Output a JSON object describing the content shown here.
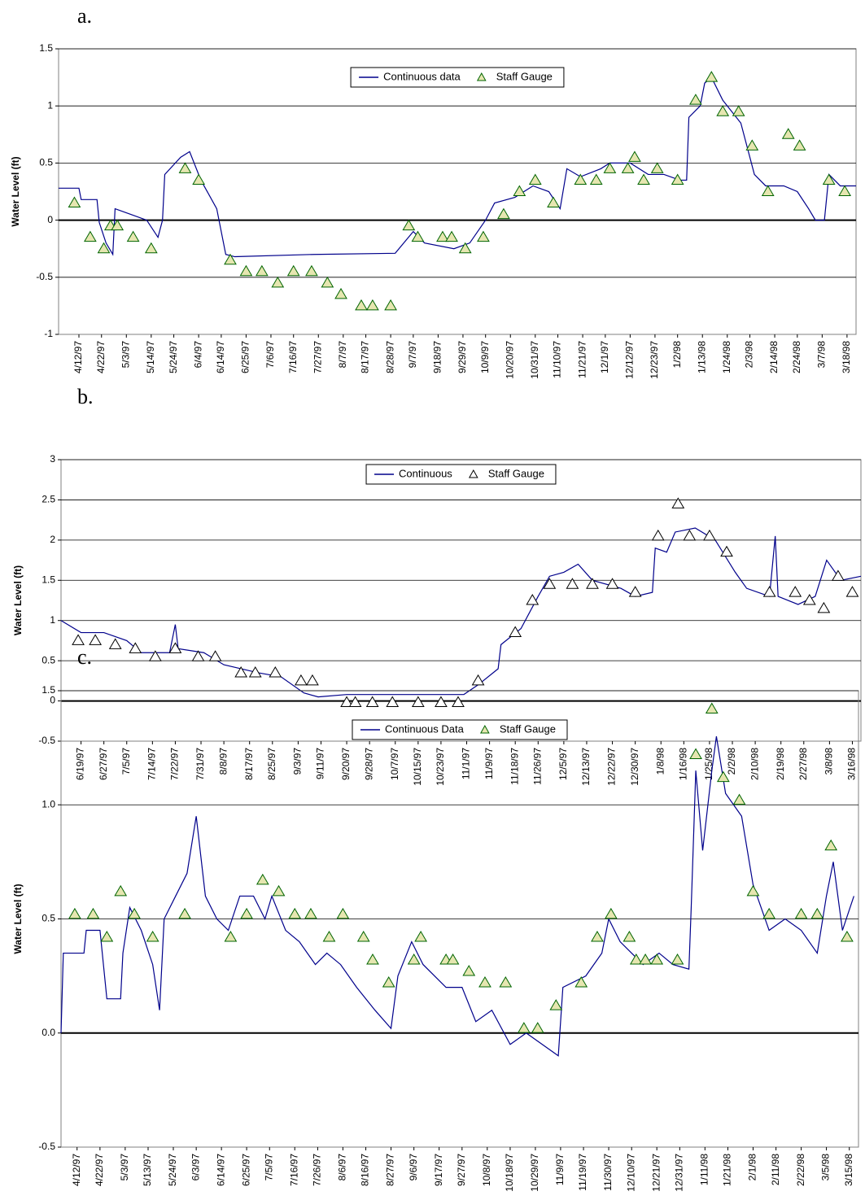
{
  "chart_data": [
    {
      "type": "line",
      "label": "a.",
      "ylabel": "Water Level (ft)",
      "grid": true,
      "legend": "top",
      "xlim": [
        "4/3/97",
        "3/22/98"
      ],
      "ylim": [
        -1,
        1.5
      ],
      "yticks": [
        -1,
        -0.5,
        0,
        0.5,
        1,
        1.5
      ],
      "xticks": [
        "4/12/97",
        "4/22/97",
        "5/3/97",
        "5/14/97",
        "5/24/97",
        "6/4/97",
        "6/14/97",
        "6/25/97",
        "7/6/97",
        "7/16/97",
        "7/27/97",
        "8/7/97",
        "8/17/97",
        "8/28/97",
        "9/7/97",
        "9/18/97",
        "9/29/97",
        "10/9/97",
        "10/20/97",
        "10/31/97",
        "11/10/97",
        "11/21/97",
        "12/1/97",
        "12/12/97",
        "12/23/97",
        "1/2/98",
        "1/13/98",
        "1/24/98",
        "2/3/98",
        "2/14/98",
        "2/24/98",
        "3/7/98",
        "3/18/98"
      ],
      "series": [
        {
          "name": "Continuous data",
          "type": "line",
          "color": "#00008b",
          "x": [
            "4/3/97",
            "4/12/97",
            "4/13/97",
            "4/20/97",
            "4/21/97",
            "4/24/97",
            "4/27/97",
            "4/28/97",
            "5/5/97",
            "5/12/97",
            "5/17/97",
            "5/19/97",
            "5/20/97",
            "5/27/97",
            "5/31/97",
            "6/5/97",
            "6/12/97",
            "6/16/97",
            "6/20/97",
            "7/25/97",
            "8/30/97",
            "9/7/97",
            "9/12/97",
            "9/25/97",
            "10/2/97",
            "10/9/97",
            "10/13/97",
            "10/22/97",
            "10/30/97",
            "11/6/97",
            "11/11/97",
            "11/14/97",
            "11/20/97",
            "11/29/97",
            "12/3/97",
            "12/12/97",
            "12/20/97",
            "12/27/97",
            "1/3/98",
            "1/6/98",
            "1/7/98",
            "1/12/98",
            "1/14/98",
            "1/17/98",
            "1/22/98",
            "1/30/98",
            "2/5/98",
            "2/10/98",
            "2/18/98",
            "2/24/98",
            "3/1/98",
            "3/4/98",
            "3/8/98",
            "3/10/98",
            "3/15/98",
            "3/22/98"
          ],
          "values": [
            0.28,
            0.28,
            0.18,
            0.18,
            -0.02,
            -0.2,
            -0.3,
            0.1,
            0.05,
            0.0,
            -0.15,
            0.0,
            0.4,
            0.55,
            0.6,
            0.35,
            0.1,
            -0.3,
            -0.32,
            -0.3,
            -0.29,
            -0.1,
            -0.2,
            -0.25,
            -0.2,
            0.0,
            0.15,
            0.2,
            0.3,
            0.25,
            0.1,
            0.45,
            0.38,
            0.45,
            0.5,
            0.5,
            0.4,
            0.4,
            0.35,
            0.35,
            0.9,
            1.0,
            1.2,
            1.25,
            1.05,
            0.85,
            0.4,
            0.3,
            0.3,
            0.25,
            0.1,
            0.0,
            0.0,
            0.4,
            0.3,
            0.3
          ]
        },
        {
          "name": "Staff Gauge",
          "type": "scatter",
          "color": "#006400",
          "fill": "#e6e6b0",
          "x": [
            "4/10/97",
            "4/17/97",
            "4/23/97",
            "4/26/97",
            "4/29/97",
            "5/6/97",
            "5/14/97",
            "5/29/97",
            "6/4/97",
            "6/18/97",
            "6/25/97",
            "7/2/97",
            "7/9/97",
            "7/16/97",
            "7/24/97",
            "7/31/97",
            "8/6/97",
            "8/15/97",
            "8/20/97",
            "8/28/97",
            "9/5/97",
            "9/9/97",
            "9/20/97",
            "9/24/97",
            "9/30/97",
            "10/8/97",
            "10/17/97",
            "10/24/97",
            "10/31/97",
            "11/8/97",
            "11/20/97",
            "11/27/97",
            "12/3/97",
            "12/11/97",
            "12/14/97",
            "12/18/97",
            "12/24/97",
            "1/2/98",
            "1/10/98",
            "1/17/98",
            "1/22/98",
            "1/29/98",
            "2/4/98",
            "2/11/98",
            "2/20/98",
            "2/25/98",
            "3/10/98",
            "3/17/98"
          ],
          "values": [
            0.15,
            -0.15,
            -0.25,
            -0.05,
            -0.05,
            -0.15,
            -0.25,
            0.45,
            0.35,
            -0.35,
            -0.45,
            -0.45,
            -0.55,
            -0.45,
            -0.45,
            -0.55,
            -0.65,
            -0.75,
            -0.75,
            -0.75,
            -0.05,
            -0.15,
            -0.15,
            -0.15,
            -0.25,
            -0.15,
            0.05,
            0.25,
            0.35,
            0.15,
            0.35,
            0.35,
            0.45,
            0.45,
            0.55,
            0.35,
            0.45,
            0.35,
            1.05,
            1.25,
            0.95,
            0.95,
            0.65,
            0.25,
            0.75,
            0.65,
            0.35,
            0.25
          ]
        }
      ]
    },
    {
      "type": "line",
      "label": "b.",
      "ylabel": "Water Level (ft)",
      "grid": true,
      "legend": "top",
      "xlim": [
        "6/12/97",
        "3/19/98"
      ],
      "ylim": [
        -0.5,
        3
      ],
      "yticks": [
        -0.5,
        0,
        0.5,
        1,
        1.5,
        2,
        2.5,
        3
      ],
      "xticks": [
        "6/19/97",
        "6/27/97",
        "7/5/97",
        "7/14/97",
        "7/22/97",
        "7/31/97",
        "8/8/97",
        "8/17/97",
        "8/25/97",
        "9/3/97",
        "9/11/97",
        "9/20/97",
        "9/28/97",
        "10/7/97",
        "10/15/97",
        "10/23/97",
        "11/1/97",
        "11/9/97",
        "11/18/97",
        "11/26/97",
        "12/5/97",
        "12/13/97",
        "12/22/97",
        "12/30/97",
        "1/8/98",
        "1/16/98",
        "1/25/98",
        "2/2/98",
        "2/10/98",
        "2/19/98",
        "2/27/98",
        "3/8/98",
        "3/16/98"
      ],
      "series": [
        {
          "name": "Continuous",
          "type": "line",
          "color": "#00008b",
          "x": [
            "6/12/97",
            "6/19/97",
            "6/27/97",
            "7/5/97",
            "7/10/97",
            "7/20/97",
            "7/22/97",
            "7/23/97",
            "8/1/97",
            "8/8/97",
            "8/20/97",
            "8/28/97",
            "9/5/97",
            "9/10/97",
            "9/20/97",
            "10/20/97",
            "10/31/97",
            "11/5/97",
            "11/12/97",
            "11/13/97",
            "11/20/97",
            "11/26/97",
            "11/30/97",
            "12/5/97",
            "12/10/97",
            "12/15/97",
            "12/25/97",
            "12/30/97",
            "1/5/98",
            "1/6/98",
            "1/10/98",
            "1/13/98",
            "1/20/98",
            "1/27/98",
            "2/3/98",
            "2/7/98",
            "2/15/98",
            "2/17/98",
            "2/18/98",
            "2/25/98",
            "3/3/98",
            "3/7/98",
            "3/12/98",
            "3/19/98"
          ],
          "values": [
            1.0,
            0.85,
            0.85,
            0.75,
            0.6,
            0.6,
            0.95,
            0.65,
            0.6,
            0.45,
            0.35,
            0.3,
            0.1,
            0.05,
            0.08,
            0.08,
            0.08,
            0.2,
            0.4,
            0.7,
            0.9,
            1.3,
            1.55,
            1.6,
            1.7,
            1.5,
            1.4,
            1.3,
            1.35,
            1.9,
            1.85,
            2.1,
            2.15,
            2.0,
            1.6,
            1.4,
            1.3,
            2.05,
            1.3,
            1.2,
            1.3,
            1.75,
            1.5,
            1.55
          ]
        },
        {
          "name": "Staff Gauge",
          "type": "scatter",
          "color": "#000000",
          "fill": "#ffffff",
          "x": [
            "6/18/97",
            "6/24/97",
            "7/1/97",
            "7/8/97",
            "7/15/97",
            "7/22/97",
            "7/30/97",
            "8/5/97",
            "8/14/97",
            "8/19/97",
            "8/26/97",
            "9/4/97",
            "9/8/97",
            "9/20/97",
            "9/23/97",
            "9/29/97",
            "10/6/97",
            "10/15/97",
            "10/23/97",
            "10/29/97",
            "11/5/97",
            "11/18/97",
            "11/24/97",
            "11/30/97",
            "12/8/97",
            "12/15/97",
            "12/22/97",
            "12/30/97",
            "1/7/98",
            "1/14/98",
            "1/18/98",
            "1/25/98",
            "1/31/98",
            "2/15/98",
            "2/24/98",
            "3/1/98",
            "3/6/98",
            "3/11/98",
            "3/16/98"
          ],
          "values": [
            0.75,
            0.75,
            0.7,
            0.65,
            0.55,
            0.65,
            0.55,
            0.55,
            0.35,
            0.35,
            0.35,
            0.25,
            0.25,
            -0.02,
            -0.02,
            -0.02,
            -0.02,
            -0.02,
            -0.02,
            -0.02,
            0.25,
            0.85,
            1.25,
            1.45,
            1.45,
            1.45,
            1.45,
            1.35,
            2.05,
            2.45,
            2.05,
            2.05,
            1.85,
            1.35,
            1.35,
            1.25,
            1.15,
            1.55,
            1.35
          ]
        }
      ]
    },
    {
      "type": "line",
      "label": "c.",
      "ylabel": "Water Level (ft)",
      "grid": true,
      "legend": "top",
      "xlim": [
        "4/5/97",
        "3/19/98"
      ],
      "ylim": [
        -0.5,
        1.5
      ],
      "yticks": [
        -0.5,
        {
          "value": 0,
          "label": "0.0"
        },
        0.5,
        {
          "value": 1,
          "label": "1.0"
        },
        1.5
      ],
      "xticks": [
        "4/12/97",
        "4/22/97",
        "5/3/97",
        "5/13/97",
        "5/24/97",
        "6/3/97",
        "6/14/97",
        "6/25/97",
        "7/5/97",
        "7/16/97",
        "7/26/97",
        "8/6/97",
        "8/16/97",
        "8/27/97",
        "9/6/97",
        "9/17/97",
        "9/27/97",
        "10/8/97",
        "10/18/97",
        "10/29/97",
        "11/9/97",
        "11/19/97",
        "11/30/97",
        "12/10/97",
        "12/21/97",
        "12/31/97",
        "1/11/98",
        "1/21/98",
        "2/1/98",
        "2/11/98",
        "2/22/98",
        "3/5/98",
        "3/15/98"
      ],
      "series": [
        {
          "name": "Continuous Data",
          "type": "line",
          "color": "#00008b",
          "x": [
            "4/5/97",
            "4/6/97",
            "4/15/97",
            "4/16/97",
            "4/22/97",
            "4/23/97",
            "4/25/97",
            "5/1/97",
            "5/2/97",
            "5/5/97",
            "5/10/97",
            "5/15/97",
            "5/18/97",
            "5/20/97",
            "5/25/97",
            "5/30/97",
            "6/3/97",
            "6/7/97",
            "6/12/97",
            "6/17/97",
            "6/22/97",
            "6/28/97",
            "7/3/97",
            "7/6/97",
            "7/12/97",
            "7/18/97",
            "7/25/97",
            "7/30/97",
            "8/5/97",
            "8/12/97",
            "8/20/97",
            "8/27/97",
            "8/30/97",
            "9/5/97",
            "9/10/97",
            "9/20/97",
            "9/27/97",
            "10/3/97",
            "10/10/97",
            "10/18/97",
            "10/25/97",
            "11/1/97",
            "11/8/97",
            "11/10/97",
            "11/20/97",
            "11/27/97",
            "11/30/97",
            "12/5/97",
            "12/15/97",
            "12/22/97",
            "12/28/97",
            "1/4/98",
            "1/5/98",
            "1/7/98",
            "1/10/98",
            "1/14/98",
            "1/16/98",
            "1/20/98",
            "1/27/98",
            "2/1/98",
            "2/8/98",
            "2/15/98",
            "2/22/98",
            "3/1/98",
            "3/5/98",
            "3/8/98",
            "3/12/98",
            "3/17/98"
          ],
          "values": [
            0.0,
            0.35,
            0.35,
            0.45,
            0.45,
            0.35,
            0.15,
            0.15,
            0.35,
            0.55,
            0.45,
            0.3,
            0.1,
            0.5,
            0.6,
            0.7,
            0.95,
            0.6,
            0.5,
            0.45,
            0.6,
            0.6,
            0.5,
            0.6,
            0.45,
            0.4,
            0.3,
            0.35,
            0.3,
            0.2,
            0.1,
            0.02,
            0.25,
            0.4,
            0.3,
            0.2,
            0.2,
            0.05,
            0.1,
            -0.05,
            0.0,
            -0.05,
            -0.1,
            0.2,
            0.25,
            0.35,
            0.5,
            0.4,
            0.3,
            0.35,
            0.3,
            0.28,
            0.55,
            1.15,
            0.8,
            1.15,
            1.3,
            1.05,
            0.95,
            0.65,
            0.45,
            0.5,
            0.45,
            0.35,
            0.6,
            0.75,
            0.45,
            0.6
          ]
        },
        {
          "name": "Staff Gauge",
          "type": "scatter",
          "color": "#006400",
          "fill": "#e6e6b0",
          "x": [
            "4/11/97",
            "4/19/97",
            "4/25/97",
            "5/1/97",
            "5/7/97",
            "5/15/97",
            "5/29/97",
            "6/18/97",
            "6/25/97",
            "7/2/97",
            "7/9/97",
            "7/16/97",
            "7/23/97",
            "7/31/97",
            "8/6/97",
            "8/15/97",
            "8/19/97",
            "8/26/97",
            "9/6/97",
            "9/9/97",
            "9/20/97",
            "9/23/97",
            "9/30/97",
            "10/7/97",
            "10/16/97",
            "10/24/97",
            "10/30/97",
            "11/7/97",
            "11/18/97",
            "11/25/97",
            "12/1/97",
            "12/9/97",
            "12/12/97",
            "12/16/97",
            "12/21/97",
            "12/30/97",
            "1/7/98",
            "1/14/98",
            "1/19/98",
            "1/26/98",
            "2/1/98",
            "2/8/98",
            "2/22/98",
            "3/1/98",
            "3/7/98",
            "3/14/98"
          ],
          "values": [
            0.52,
            0.52,
            0.42,
            0.62,
            0.52,
            0.42,
            0.52,
            0.42,
            0.52,
            0.67,
            0.62,
            0.52,
            0.52,
            0.42,
            0.52,
            0.42,
            0.32,
            0.22,
            0.32,
            0.42,
            0.32,
            0.32,
            0.27,
            0.22,
            0.22,
            0.02,
            0.02,
            0.12,
            0.22,
            0.42,
            0.52,
            0.42,
            0.32,
            0.32,
            0.32,
            0.32,
            1.22,
            1.42,
            1.12,
            1.02,
            0.62,
            0.52,
            0.52,
            0.52,
            0.82,
            0.42
          ]
        }
      ]
    }
  ]
}
